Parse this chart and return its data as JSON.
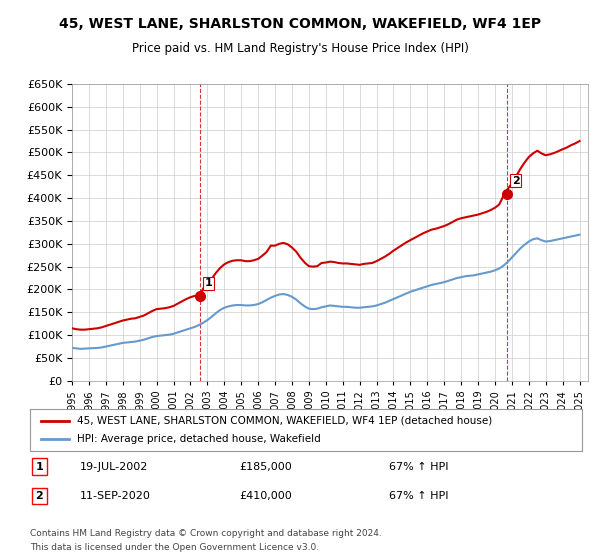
{
  "title": "45, WEST LANE, SHARLSTON COMMON, WAKEFIELD, WF4 1EP",
  "subtitle": "Price paid vs. HM Land Registry's House Price Index (HPI)",
  "ylim": [
    0,
    650000
  ],
  "yticks": [
    0,
    50000,
    100000,
    150000,
    200000,
    250000,
    300000,
    350000,
    400000,
    450000,
    500000,
    550000,
    600000,
    650000
  ],
  "xlim_start": 1995.0,
  "xlim_end": 2025.5,
  "background_color": "#ffffff",
  "grid_color": "#cccccc",
  "sale1_x": 2002.54,
  "sale1_y": 185000,
  "sale1_label": "1",
  "sale1_date": "19-JUL-2002",
  "sale1_price": "£185,000",
  "sale1_hpi": "67% ↑ HPI",
  "sale2_x": 2020.69,
  "sale2_y": 410000,
  "sale2_label": "2",
  "sale2_date": "11-SEP-2020",
  "sale2_price": "£410,000",
  "sale2_hpi": "67% ↑ HPI",
  "red_line_color": "#cc0000",
  "blue_line_color": "#6699cc",
  "vline_color": "#cc0000",
  "legend_property": "45, WEST LANE, SHARLSTON COMMON, WAKEFIELD, WF4 1EP (detached house)",
  "legend_hpi": "HPI: Average price, detached house, Wakefield",
  "footer1": "Contains HM Land Registry data © Crown copyright and database right 2024.",
  "footer2": "This data is licensed under the Open Government Licence v3.0.",
  "hpi_data_x": [
    1995.0,
    1995.25,
    1995.5,
    1995.75,
    1996.0,
    1996.25,
    1996.5,
    1996.75,
    1997.0,
    1997.25,
    1997.5,
    1997.75,
    1998.0,
    1998.25,
    1998.5,
    1998.75,
    1999.0,
    1999.25,
    1999.5,
    1999.75,
    2000.0,
    2000.25,
    2000.5,
    2000.75,
    2001.0,
    2001.25,
    2001.5,
    2001.75,
    2002.0,
    2002.25,
    2002.5,
    2002.75,
    2003.0,
    2003.25,
    2003.5,
    2003.75,
    2004.0,
    2004.25,
    2004.5,
    2004.75,
    2005.0,
    2005.25,
    2005.5,
    2005.75,
    2006.0,
    2006.25,
    2006.5,
    2006.75,
    2007.0,
    2007.25,
    2007.5,
    2007.75,
    2008.0,
    2008.25,
    2008.5,
    2008.75,
    2009.0,
    2009.25,
    2009.5,
    2009.75,
    2010.0,
    2010.25,
    2010.5,
    2010.75,
    2011.0,
    2011.25,
    2011.5,
    2011.75,
    2012.0,
    2012.25,
    2012.5,
    2012.75,
    2013.0,
    2013.25,
    2013.5,
    2013.75,
    2014.0,
    2014.25,
    2014.5,
    2014.75,
    2015.0,
    2015.25,
    2015.5,
    2015.75,
    2016.0,
    2016.25,
    2016.5,
    2016.75,
    2017.0,
    2017.25,
    2017.5,
    2017.75,
    2018.0,
    2018.25,
    2018.5,
    2018.75,
    2019.0,
    2019.25,
    2019.5,
    2019.75,
    2020.0,
    2020.25,
    2020.5,
    2020.75,
    2021.0,
    2021.25,
    2021.5,
    2021.75,
    2022.0,
    2022.25,
    2022.5,
    2022.75,
    2023.0,
    2023.25,
    2023.5,
    2023.75,
    2024.0,
    2024.25,
    2024.5,
    2024.75,
    2025.0
  ],
  "hpi_data_y": [
    72000,
    71000,
    70000,
    70500,
    71000,
    71500,
    72000,
    73000,
    75000,
    77000,
    79000,
    81000,
    83000,
    84000,
    85000,
    86000,
    88000,
    90000,
    93000,
    96000,
    98000,
    99000,
    100000,
    101000,
    103000,
    106000,
    109000,
    112000,
    115000,
    118000,
    122000,
    127000,
    133000,
    140000,
    148000,
    155000,
    160000,
    163000,
    165000,
    166000,
    166000,
    165000,
    165000,
    166000,
    168000,
    172000,
    177000,
    182000,
    186000,
    189000,
    190000,
    188000,
    184000,
    178000,
    170000,
    163000,
    158000,
    157000,
    158000,
    161000,
    163000,
    165000,
    164000,
    163000,
    162000,
    162000,
    161000,
    160000,
    160000,
    161000,
    162000,
    163000,
    165000,
    168000,
    171000,
    175000,
    179000,
    183000,
    187000,
    191000,
    195000,
    198000,
    201000,
    204000,
    207000,
    210000,
    212000,
    214000,
    216000,
    219000,
    222000,
    225000,
    227000,
    229000,
    230000,
    231000,
    233000,
    235000,
    237000,
    239000,
    242000,
    246000,
    252000,
    260000,
    270000,
    280000,
    290000,
    298000,
    305000,
    310000,
    312000,
    308000,
    305000,
    306000,
    308000,
    310000,
    312000,
    314000,
    316000,
    318000,
    320000
  ],
  "red_data_x": [
    1995.0,
    1995.25,
    1995.5,
    1995.75,
    1996.0,
    1996.25,
    1996.5,
    1996.75,
    1997.0,
    1997.25,
    1997.5,
    1997.75,
    1998.0,
    1998.25,
    1998.5,
    1998.75,
    1999.0,
    1999.25,
    1999.5,
    1999.75,
    2000.0,
    2000.25,
    2000.5,
    2000.75,
    2001.0,
    2001.25,
    2001.5,
    2001.75,
    2002.0,
    2002.25,
    2002.5,
    2002.54,
    2002.75,
    2003.0,
    2003.25,
    2003.5,
    2003.75,
    2004.0,
    2004.25,
    2004.5,
    2004.75,
    2005.0,
    2005.25,
    2005.5,
    2005.75,
    2006.0,
    2006.25,
    2006.5,
    2006.75,
    2007.0,
    2007.25,
    2007.5,
    2007.75,
    2008.0,
    2008.25,
    2008.5,
    2008.75,
    2009.0,
    2009.25,
    2009.5,
    2009.75,
    2010.0,
    2010.25,
    2010.5,
    2010.75,
    2011.0,
    2011.25,
    2011.5,
    2011.75,
    2012.0,
    2012.25,
    2012.5,
    2012.75,
    2013.0,
    2013.25,
    2013.5,
    2013.75,
    2014.0,
    2014.25,
    2014.5,
    2014.75,
    2015.0,
    2015.25,
    2015.5,
    2015.75,
    2016.0,
    2016.25,
    2016.5,
    2016.75,
    2017.0,
    2017.25,
    2017.5,
    2017.75,
    2018.0,
    2018.25,
    2018.5,
    2018.75,
    2019.0,
    2019.25,
    2019.5,
    2019.75,
    2020.0,
    2020.25,
    2020.5,
    2020.69,
    2020.75,
    2021.0,
    2021.25,
    2021.5,
    2021.75,
    2022.0,
    2022.25,
    2022.5,
    2022.75,
    2023.0,
    2023.25,
    2023.5,
    2023.75,
    2024.0,
    2024.25,
    2024.5,
    2024.75,
    2025.0
  ],
  "red_data_y": [
    115000,
    113000,
    112000,
    112000,
    113000,
    114000,
    115000,
    117000,
    120000,
    123000,
    126000,
    129000,
    132000,
    134000,
    136000,
    137000,
    140000,
    143000,
    148000,
    153000,
    157000,
    158000,
    159000,
    161000,
    164000,
    169000,
    174000,
    179000,
    183000,
    186000,
    185000,
    185000,
    202000,
    212000,
    223000,
    236000,
    247000,
    255000,
    260000,
    263000,
    264000,
    264000,
    262000,
    262000,
    264000,
    267000,
    274000,
    282000,
    296000,
    296000,
    300000,
    302000,
    299000,
    292000,
    283000,
    270000,
    259000,
    251000,
    250000,
    251000,
    258000,
    259000,
    261000,
    260000,
    258000,
    257000,
    257000,
    256000,
    255000,
    254000,
    256000,
    257000,
    258000,
    262000,
    267000,
    272000,
    278000,
    285000,
    291000,
    297000,
    303000,
    308000,
    313000,
    318000,
    323000,
    327000,
    331000,
    333000,
    336000,
    339000,
    343000,
    348000,
    353000,
    356000,
    358000,
    360000,
    362000,
    364000,
    367000,
    370000,
    374000,
    379000,
    386000,
    405000,
    410000,
    420000,
    432000,
    448000,
    464000,
    478000,
    490000,
    498000,
    504000,
    498000,
    494000,
    496000,
    499000,
    503000,
    507000,
    511000,
    516000,
    520000,
    525000
  ]
}
